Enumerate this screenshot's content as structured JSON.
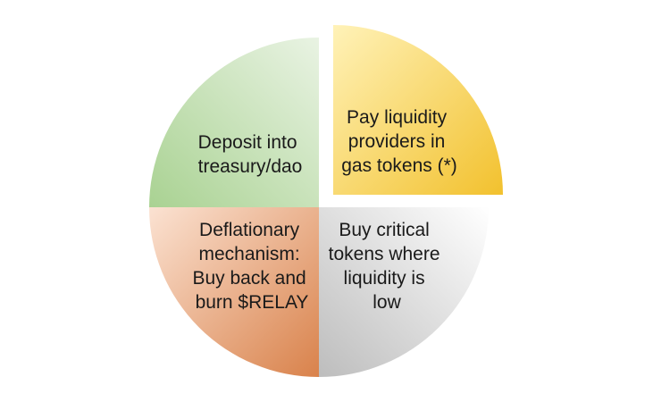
{
  "diagram": {
    "quadrants": [
      {
        "id": "top-left",
        "lines": [
          "Deposit into",
          "treasury/dao"
        ],
        "colors": {
          "light": "#e9f3e3",
          "dark": "#a9d292"
        }
      },
      {
        "id": "top-right",
        "lines": [
          "Pay liquidity",
          "providers in",
          "gas tokens (*)"
        ],
        "colors": {
          "light": "#fff2b8",
          "dark": "#f2c12e"
        }
      },
      {
        "id": "bottom-right",
        "lines": [
          "Buy critical",
          "tokens where",
          "liquidity is",
          "low"
        ],
        "colors": {
          "light": "#ffffff",
          "dark": "#bdbdbd"
        }
      },
      {
        "id": "bottom-left",
        "lines": [
          "Deflationary",
          "mechanism:",
          "Buy back and",
          "burn  $RELAY"
        ],
        "colors": {
          "light": "#fbe2d2",
          "dark": "#d9824b"
        }
      }
    ]
  }
}
